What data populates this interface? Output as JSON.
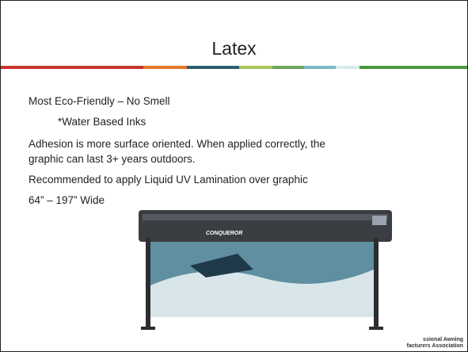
{
  "slide": {
    "title": "Latex",
    "lines": [
      "Most Eco-Friendly – No Smell",
      "*Water Based Inks",
      "Adhesion is more surface oriented.  When applied correctly, the",
      "graphic can last 3+ years outdoors.",
      "Recommended to apply Liquid UV Lamination over graphic",
      "64” – 197” Wide"
    ],
    "printer_brand": "CONQUEROR",
    "logo": [
      "ssional Awning",
      "facturers Association"
    ]
  }
}
